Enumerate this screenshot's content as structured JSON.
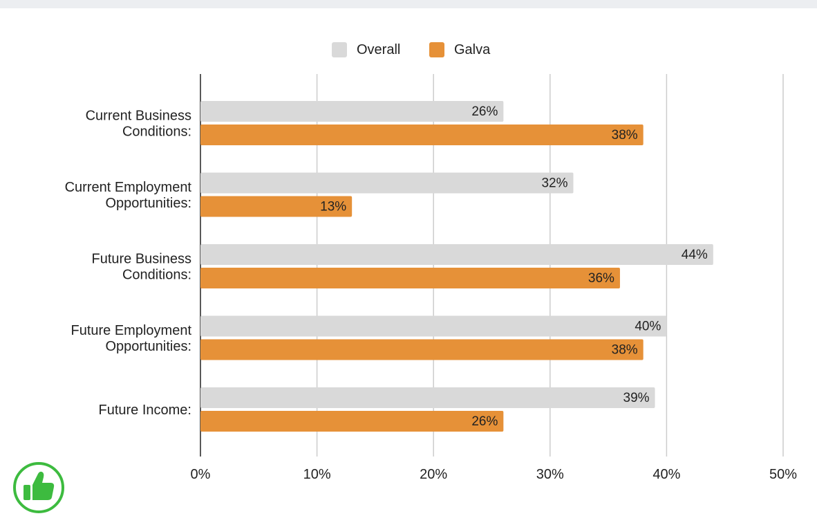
{
  "chart_data": {
    "type": "bar",
    "orientation": "horizontal",
    "categories": [
      [
        "Current Business",
        "Conditions:"
      ],
      [
        "Current Employment",
        "Opportunities:"
      ],
      [
        "Future Business",
        "Conditions:"
      ],
      [
        "Future Employment",
        "Opportunities:"
      ],
      [
        "Future Income:"
      ]
    ],
    "series": [
      {
        "name": "Overall",
        "values": [
          26,
          32,
          44,
          40,
          39
        ],
        "color": "#d9d9d9"
      },
      {
        "name": "Galva",
        "values": [
          38,
          13,
          36,
          38,
          26
        ],
        "color": "#e69138"
      }
    ],
    "data_labels": {
      "Overall": [
        "26%",
        "32%",
        "44%",
        "40%",
        "39%"
      ],
      "Galva": [
        "38%",
        "13%",
        "36%",
        "38%",
        "26%"
      ]
    },
    "xlim": [
      0,
      50
    ],
    "xticks": [
      0,
      10,
      20,
      30,
      40,
      50
    ],
    "xtick_labels": [
      "0%",
      "10%",
      "20%",
      "30%",
      "40%",
      "50%"
    ],
    "grid": true,
    "legend_position": "top-center",
    "title": "",
    "xlabel": "",
    "ylabel": ""
  },
  "legend": {
    "overall_label": "Overall",
    "galva_label": "Galva"
  },
  "badge": {
    "icon": "thumbs-up-icon",
    "color": "#3dbb3f"
  }
}
